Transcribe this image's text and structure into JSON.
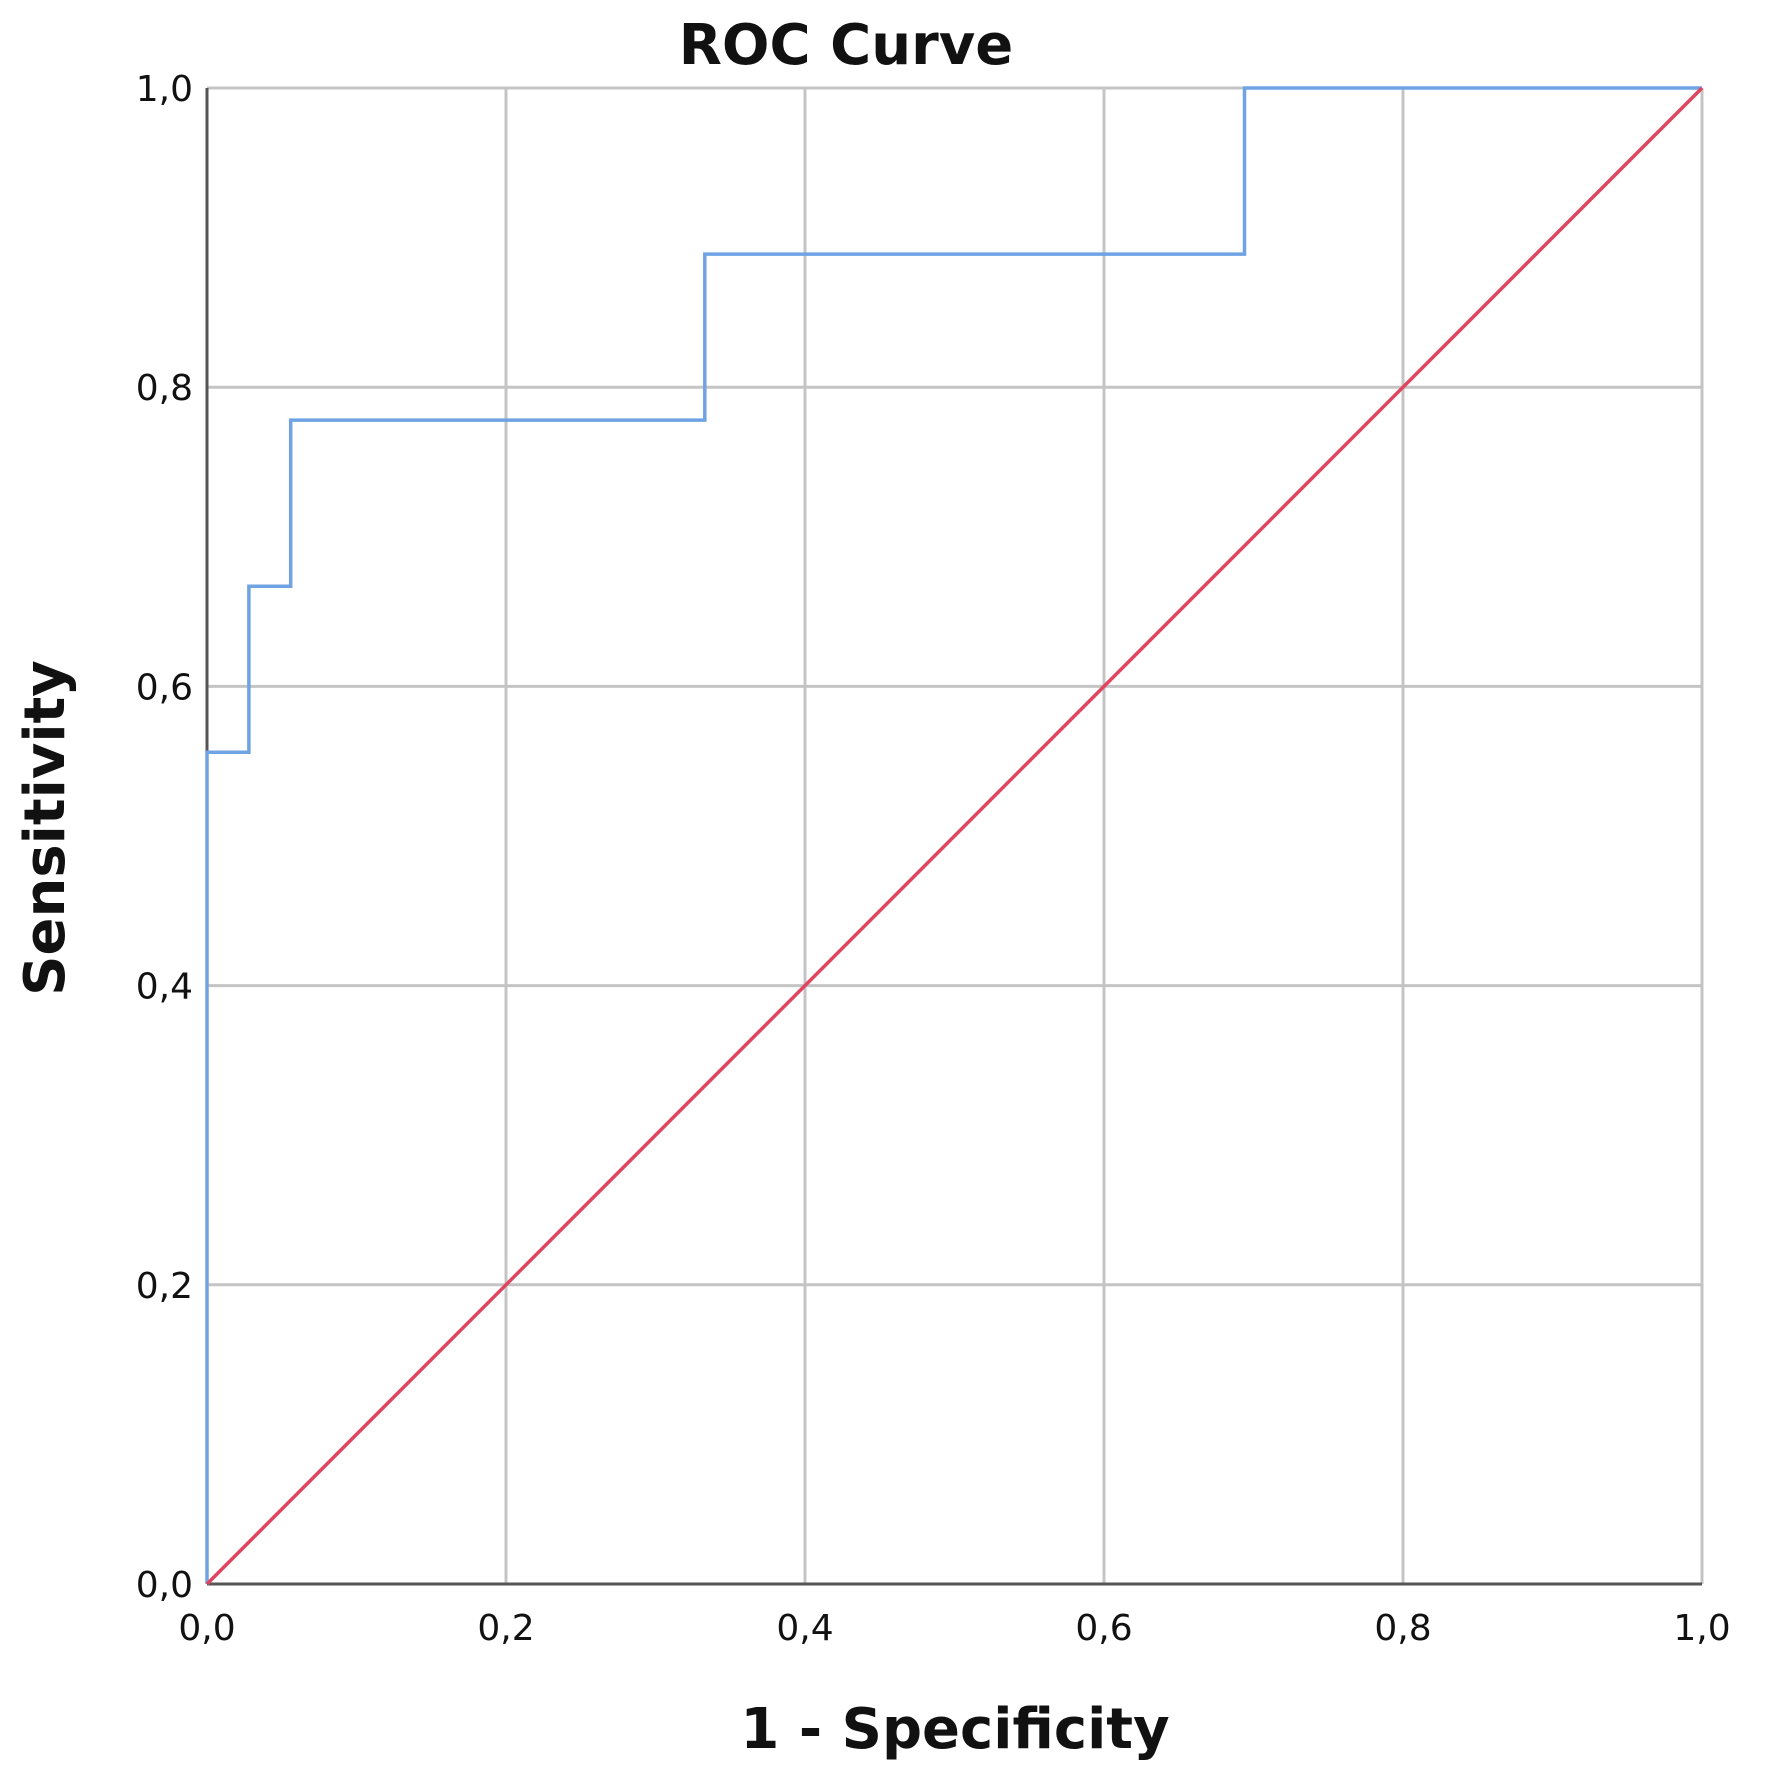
{
  "chart_data": {
    "type": "line",
    "title": "ROC Curve",
    "xlabel": "1 - Specificity",
    "ylabel": "Sensitivity",
    "xlim": [
      0.0,
      1.0
    ],
    "ylim": [
      0.0,
      1.0
    ],
    "x_ticks": [
      "0,0",
      "0,2",
      "0,4",
      "0,6",
      "0,8",
      "1,0"
    ],
    "y_ticks": [
      "0,0",
      "0,2",
      "0,4",
      "0,6",
      "0,8",
      "1,0"
    ],
    "grid": true,
    "legend": "none",
    "series": [
      {
        "style": "step",
        "color": "#6fa3e3",
        "x": [
          0.0,
          0.0,
          0.028,
          0.028,
          0.056,
          0.056,
          0.333,
          0.333,
          0.694,
          0.694,
          1.0
        ],
        "y": [
          0.0,
          0.556,
          0.556,
          0.667,
          0.667,
          0.778,
          0.778,
          0.889,
          0.889,
          1.0,
          1.0
        ]
      },
      {
        "style": "reference",
        "color": "#e0455f",
        "x": [
          0.0,
          1.0
        ],
        "y": [
          0.0,
          1.0
        ]
      }
    ]
  }
}
